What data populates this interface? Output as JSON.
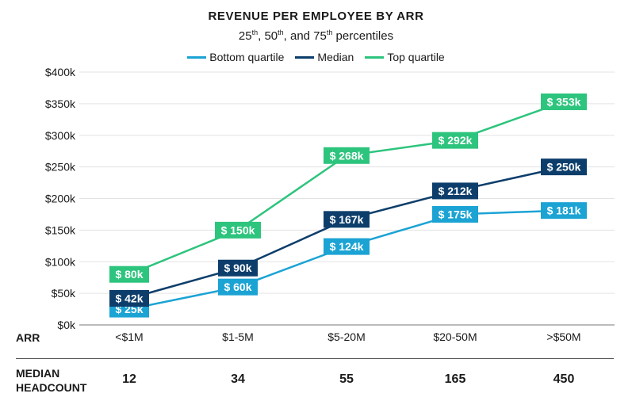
{
  "chart_data": {
    "type": "line",
    "title": "REVENUE PER EMPLOYEE BY ARR",
    "subtitle": {
      "p25": "25",
      "p50": "50",
      "p75": "75",
      "suffix": "th",
      "sep": ", ",
      "and": ", and ",
      "tail": " percentiles"
    },
    "categories": [
      "<$1M",
      "$1-5M",
      "$5-20M",
      "$20-50M",
      ">$50M"
    ],
    "series": [
      {
        "name": "Bottom quartile",
        "color": "#1ba3d4",
        "values": [
          25,
          60,
          124,
          175,
          181
        ]
      },
      {
        "name": "Median",
        "color": "#0d3e6b",
        "values": [
          42,
          90,
          167,
          212,
          250
        ]
      },
      {
        "name": "Top quartile",
        "color": "#2dc47d",
        "values": [
          80,
          150,
          268,
          292,
          353
        ]
      }
    ],
    "data_labels": {
      "prefix": "$ ",
      "suffix": "k"
    },
    "y_ticks": [
      "$0k",
      "$50k",
      "$100k",
      "$150k",
      "$200k",
      "$250k",
      "$300k",
      "$350k",
      "$400k"
    ],
    "ylim": [
      0,
      400
    ],
    "grid": true,
    "legend_position": "top-center",
    "xlabel": "ARR"
  },
  "footer": {
    "headcount_label_line1": "MEDIAN",
    "headcount_label_line2": "HEADCOUNT",
    "headcounts": [
      "12",
      "34",
      "55",
      "165",
      "450"
    ]
  }
}
